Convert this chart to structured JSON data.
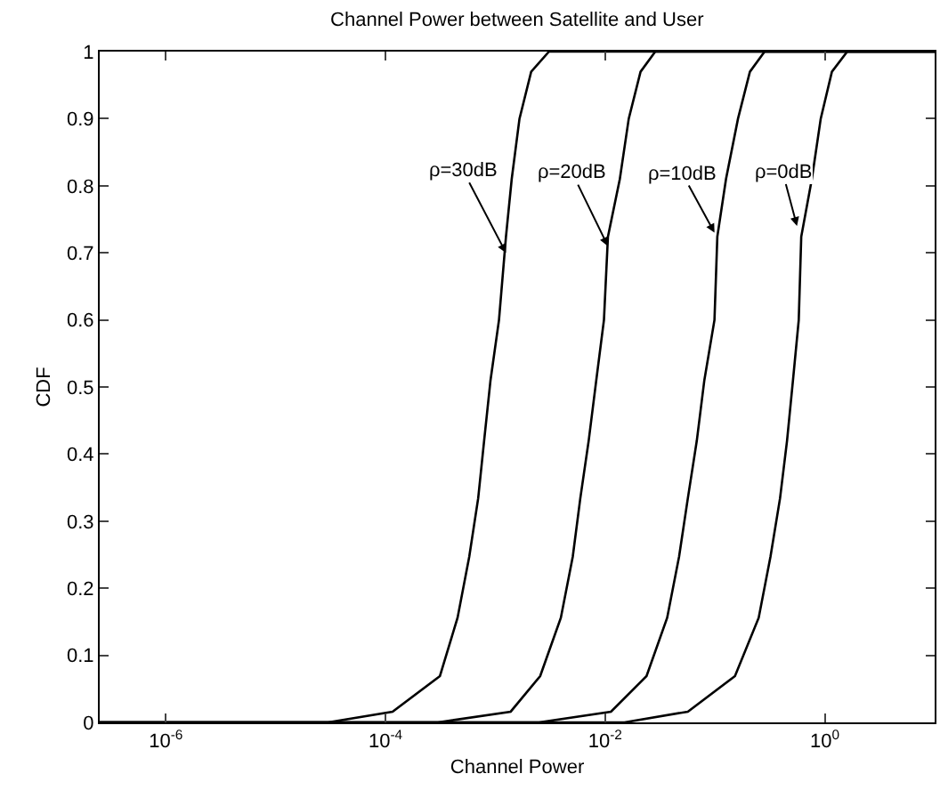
{
  "chart_data": {
    "type": "line",
    "title": "Channel Power between Satellite and User",
    "xlabel": "Channel Power",
    "ylabel": "CDF",
    "log": "x",
    "xlim": [
      2.5e-07,
      10
    ],
    "ylim": [
      0,
      1
    ],
    "xticks": [
      {
        "value": 1e-06,
        "label": "10$^{-6}$"
      },
      {
        "value": 0.0001,
        "label": "10$^{-4}$"
      },
      {
        "value": 0.01,
        "label": "10$^{-2}$"
      },
      {
        "value": 1,
        "label": "10$^{0}$"
      }
    ],
    "yticks": [
      0,
      0.1,
      0.2,
      0.3,
      0.4,
      0.5,
      0.6,
      0.7,
      0.8,
      0.9,
      1
    ],
    "grid": false,
    "marker": "none",
    "line_style": "solid",
    "series": [
      {
        "color": "#000000",
        "x": [
          2.5e-07,
          3e-05,
          0.000116,
          0.000313,
          0.000453,
          0.000579,
          0.000698,
          0.000791,
          0.000904,
          0.00108,
          0.00125,
          0.00141,
          0.00166,
          0.00212,
          0.00308,
          10
        ],
        "values": [
          0,
          0,
          0.016,
          0.069,
          0.156,
          0.247,
          0.334,
          0.42,
          0.51,
          0.6,
          0.724,
          0.81,
          0.9,
          0.97,
          1,
          1
        ]
      },
      {
        "color": "#000000",
        "x": [
          2.5e-07,
          0.0003,
          0.00138,
          0.00256,
          0.00395,
          0.00507,
          0.00594,
          0.00708,
          0.0083,
          0.00975,
          0.0106,
          0.0136,
          0.0164,
          0.021,
          0.0286,
          10
        ],
        "values": [
          0,
          0,
          0.016,
          0.069,
          0.156,
          0.247,
          0.334,
          0.42,
          0.51,
          0.6,
          0.724,
          0.81,
          0.9,
          0.97,
          1,
          1
        ]
      },
      {
        "color": "#000000",
        "x": [
          2.5e-07,
          0.0025,
          0.0113,
          0.0238,
          0.0367,
          0.0471,
          0.0566,
          0.0683,
          0.08,
          0.0989,
          0.105,
          0.126,
          0.162,
          0.208,
          0.283,
          10
        ],
        "values": [
          0,
          0,
          0.016,
          0.069,
          0.156,
          0.247,
          0.334,
          0.42,
          0.51,
          0.6,
          0.724,
          0.81,
          0.9,
          0.97,
          1,
          1
        ]
      },
      {
        "color": "#000000",
        "x": [
          2.5e-07,
          0.015,
          0.0566,
          0.152,
          0.25,
          0.32,
          0.391,
          0.453,
          0.513,
          0.579,
          0.61,
          0.762,
          0.918,
          1.16,
          1.6,
          10
        ],
        "values": [
          0,
          0,
          0.016,
          0.069,
          0.156,
          0.247,
          0.334,
          0.42,
          0.51,
          0.6,
          0.724,
          0.81,
          0.9,
          0.97,
          1,
          1
        ]
      }
    ],
    "annotations": [
      {
        "text": "ρ=30dB",
        "x": 0.00125,
        "y": 0.7
      },
      {
        "text": "ρ=20dB",
        "x": 0.0106,
        "y": 0.71
      },
      {
        "text": "ρ=10dB",
        "x": 0.099,
        "y": 0.73
      },
      {
        "text": "ρ=0dB",
        "x": 0.558,
        "y": 0.74
      }
    ]
  }
}
